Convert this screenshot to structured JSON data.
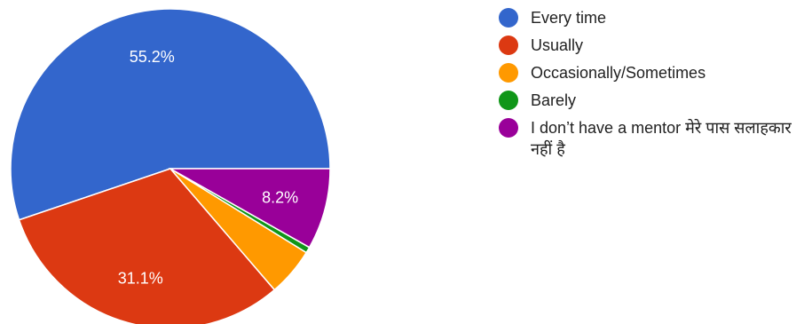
{
  "chart_data": {
    "type": "pie",
    "slices": [
      {
        "label": "Every time",
        "value": 55.2,
        "display": "55.2%",
        "color": "#3366cc"
      },
      {
        "label": "Usually",
        "value": 31.1,
        "display": "31.1%",
        "color": "#dc3912"
      },
      {
        "label": "Occasionally/Sometimes",
        "value": 4.9,
        "display": "",
        "color": "#ff9900"
      },
      {
        "label": "Barely",
        "value": 0.6,
        "display": "",
        "color": "#109618"
      },
      {
        "label": "I don’t have a mentor मेरे पास सलाहकार नहीं है",
        "value": 8.2,
        "display": "8.2%",
        "color": "#990099"
      }
    ],
    "legend_position": "right"
  }
}
